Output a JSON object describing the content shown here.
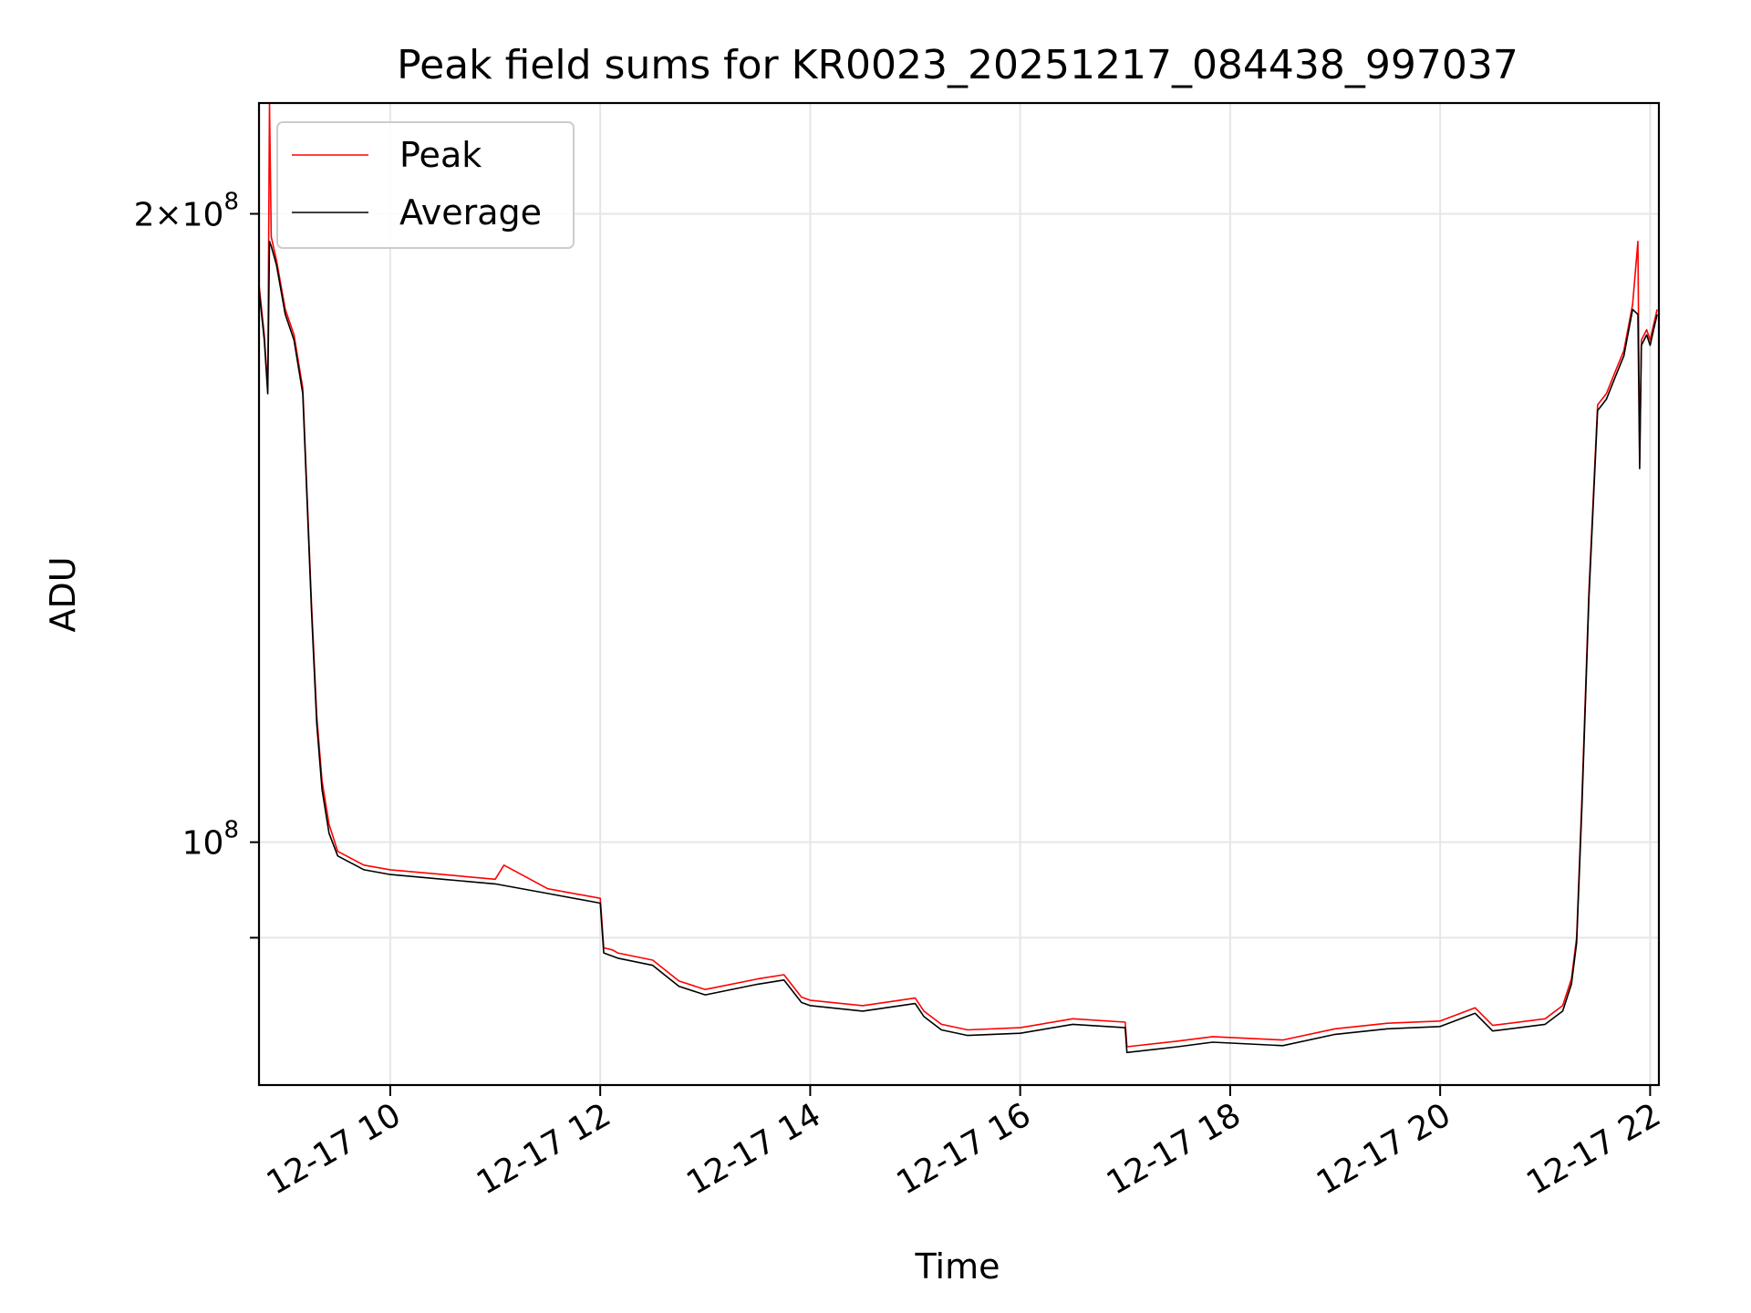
{
  "chart_data": {
    "type": "line",
    "title": "Peak field sums for KR0023_20251217_084438_997037",
    "xlabel": "Time",
    "ylabel": "ADU",
    "yscale": "log",
    "grid": true,
    "legend_position": "top-left",
    "xlim": [
      "2025-12-17 08:45",
      "2025-12-17 22:05"
    ],
    "ylim": [
      76500000,
      226000000
    ],
    "x_ticks": [
      "2025-12-17 10:00",
      "2025-12-17 12:00",
      "2025-12-17 14:00",
      "2025-12-17 16:00",
      "2025-12-17 18:00",
      "2025-12-17 20:00",
      "2025-12-17 22:00"
    ],
    "x_tick_labels": [
      "12-17 10",
      "12-17 12",
      "12-17 14",
      "12-17 16",
      "12-17 18",
      "12-17 20",
      "12-17 22"
    ],
    "y_ticks": [
      {
        "value": 200000000,
        "label_base": "2×10",
        "label_exp": "8"
      },
      {
        "value": 100000000,
        "label_base": "10",
        "label_exp": "8"
      },
      {
        "value": 90000000,
        "label_base": "",
        "label_exp": ""
      }
    ],
    "series": [
      {
        "name": "Peak",
        "color": "#ff0000",
        "x": [
          "2025-12-17 08:45",
          "2025-12-17 08:48",
          "2025-12-17 08:50",
          "2025-12-17 08:51",
          "2025-12-17 08:52",
          "2025-12-17 08:55",
          "2025-12-17 09:00",
          "2025-12-17 09:05",
          "2025-12-17 09:10",
          "2025-12-17 09:15",
          "2025-12-17 09:18",
          "2025-12-17 09:21",
          "2025-12-17 09:25",
          "2025-12-17 09:30",
          "2025-12-17 09:35",
          "2025-12-17 09:40",
          "2025-12-17 09:45",
          "2025-12-17 10:00",
          "2025-12-17 10:30",
          "2025-12-17 11:00",
          "2025-12-17 11:05",
          "2025-12-17 11:30",
          "2025-12-17 12:00",
          "2025-12-17 12:02",
          "2025-12-17 12:07",
          "2025-12-17 12:10",
          "2025-12-17 12:30",
          "2025-12-17 12:45",
          "2025-12-17 13:00",
          "2025-12-17 13:30",
          "2025-12-17 13:45",
          "2025-12-17 13:55",
          "2025-12-17 14:00",
          "2025-12-17 14:30",
          "2025-12-17 15:00",
          "2025-12-17 15:05",
          "2025-12-17 15:15",
          "2025-12-17 15:30",
          "2025-12-17 16:00",
          "2025-12-17 16:30",
          "2025-12-17 17:00",
          "2025-12-17 17:01",
          "2025-12-17 17:30",
          "2025-12-17 17:50",
          "2025-12-17 18:30",
          "2025-12-17 19:00",
          "2025-12-17 19:30",
          "2025-12-17 20:00",
          "2025-12-17 20:20",
          "2025-12-17 20:30",
          "2025-12-17 21:00",
          "2025-12-17 21:10",
          "2025-12-17 21:15",
          "2025-12-17 21:18",
          "2025-12-17 21:21",
          "2025-12-17 21:25",
          "2025-12-17 21:30",
          "2025-12-17 21:35",
          "2025-12-17 21:40",
          "2025-12-17 21:45",
          "2025-12-17 21:50",
          "2025-12-17 21:53",
          "2025-12-17 21:54",
          "2025-12-17 21:55",
          "2025-12-17 21:58",
          "2025-12-17 22:00",
          "2025-12-17 22:02",
          "2025-12-17 22:04"
        ],
        "y": [
          185000000,
          175000000,
          165000000,
          226000000,
          195000000,
          190000000,
          180000000,
          175000000,
          165000000,
          130000000,
          115000000,
          107000000,
          102000000,
          99000000,
          98500000,
          98000000,
          97500000,
          97000000,
          96500000,
          96000000,
          97500000,
          95000000,
          94000000,
          89000000,
          88800000,
          88500000,
          87800000,
          85800000,
          85000000,
          86000000,
          86400000,
          84300000,
          84000000,
          83500000,
          84200000,
          83000000,
          81800000,
          81300000,
          81500000,
          82300000,
          82000000,
          79800000,
          80300000,
          80700000,
          80400000,
          81400000,
          81900000,
          82100000,
          83300000,
          81700000,
          82300000,
          83500000,
          86000000,
          90000000,
          105000000,
          132000000,
          162000000,
          164000000,
          168000000,
          172000000,
          181000000,
          194000000,
          152000000,
          174000000,
          176000000,
          174000000,
          177000000,
          180000000
        ]
      },
      {
        "name": "Average",
        "color": "#000000",
        "x": [
          "2025-12-17 08:45",
          "2025-12-17 08:48",
          "2025-12-17 08:50",
          "2025-12-17 08:51",
          "2025-12-17 08:52",
          "2025-12-17 08:55",
          "2025-12-17 09:00",
          "2025-12-17 09:05",
          "2025-12-17 09:10",
          "2025-12-17 09:15",
          "2025-12-17 09:18",
          "2025-12-17 09:21",
          "2025-12-17 09:25",
          "2025-12-17 09:30",
          "2025-12-17 09:35",
          "2025-12-17 09:40",
          "2025-12-17 09:45",
          "2025-12-17 10:00",
          "2025-12-17 10:30",
          "2025-12-17 11:00",
          "2025-12-17 11:30",
          "2025-12-17 12:00",
          "2025-12-17 12:02",
          "2025-12-17 12:10",
          "2025-12-17 12:30",
          "2025-12-17 12:45",
          "2025-12-17 13:00",
          "2025-12-17 13:30",
          "2025-12-17 13:45",
          "2025-12-17 13:55",
          "2025-12-17 14:00",
          "2025-12-17 14:30",
          "2025-12-17 15:00",
          "2025-12-17 15:05",
          "2025-12-17 15:15",
          "2025-12-17 15:30",
          "2025-12-17 16:00",
          "2025-12-17 16:30",
          "2025-12-17 17:00",
          "2025-12-17 17:01",
          "2025-12-17 17:30",
          "2025-12-17 17:50",
          "2025-12-17 18:30",
          "2025-12-17 19:00",
          "2025-12-17 19:30",
          "2025-12-17 20:00",
          "2025-12-17 20:20",
          "2025-12-17 20:30",
          "2025-12-17 21:00",
          "2025-12-17 21:10",
          "2025-12-17 21:15",
          "2025-12-17 21:18",
          "2025-12-17 21:21",
          "2025-12-17 21:25",
          "2025-12-17 21:30",
          "2025-12-17 21:35",
          "2025-12-17 21:40",
          "2025-12-17 21:45",
          "2025-12-17 21:50",
          "2025-12-17 21:53",
          "2025-12-17 21:54",
          "2025-12-17 21:55",
          "2025-12-17 21:58",
          "2025-12-17 22:00",
          "2025-12-17 22:02",
          "2025-12-17 22:04"
        ],
        "y": [
          184000000,
          174000000,
          164000000,
          194000000,
          193000000,
          189000000,
          179000000,
          174000000,
          164000000,
          129000000,
          114000000,
          106000000,
          101000000,
          98500000,
          98000000,
          97500000,
          97000000,
          96500000,
          96000000,
          95500000,
          94500000,
          93500000,
          88500000,
          88000000,
          87300000,
          85300000,
          84500000,
          85500000,
          85900000,
          83800000,
          83500000,
          83000000,
          83700000,
          82500000,
          81300000,
          80800000,
          81000000,
          81800000,
          81500000,
          79300000,
          79800000,
          80200000,
          79900000,
          80900000,
          81400000,
          81600000,
          82800000,
          81200000,
          81800000,
          83000000,
          85500000,
          89500000,
          104000000,
          131000000,
          161000000,
          163000000,
          167000000,
          171000000,
          180000000,
          179000000,
          151000000,
          173000000,
          175000000,
          173000000,
          176000000,
          179000000
        ]
      }
    ]
  }
}
